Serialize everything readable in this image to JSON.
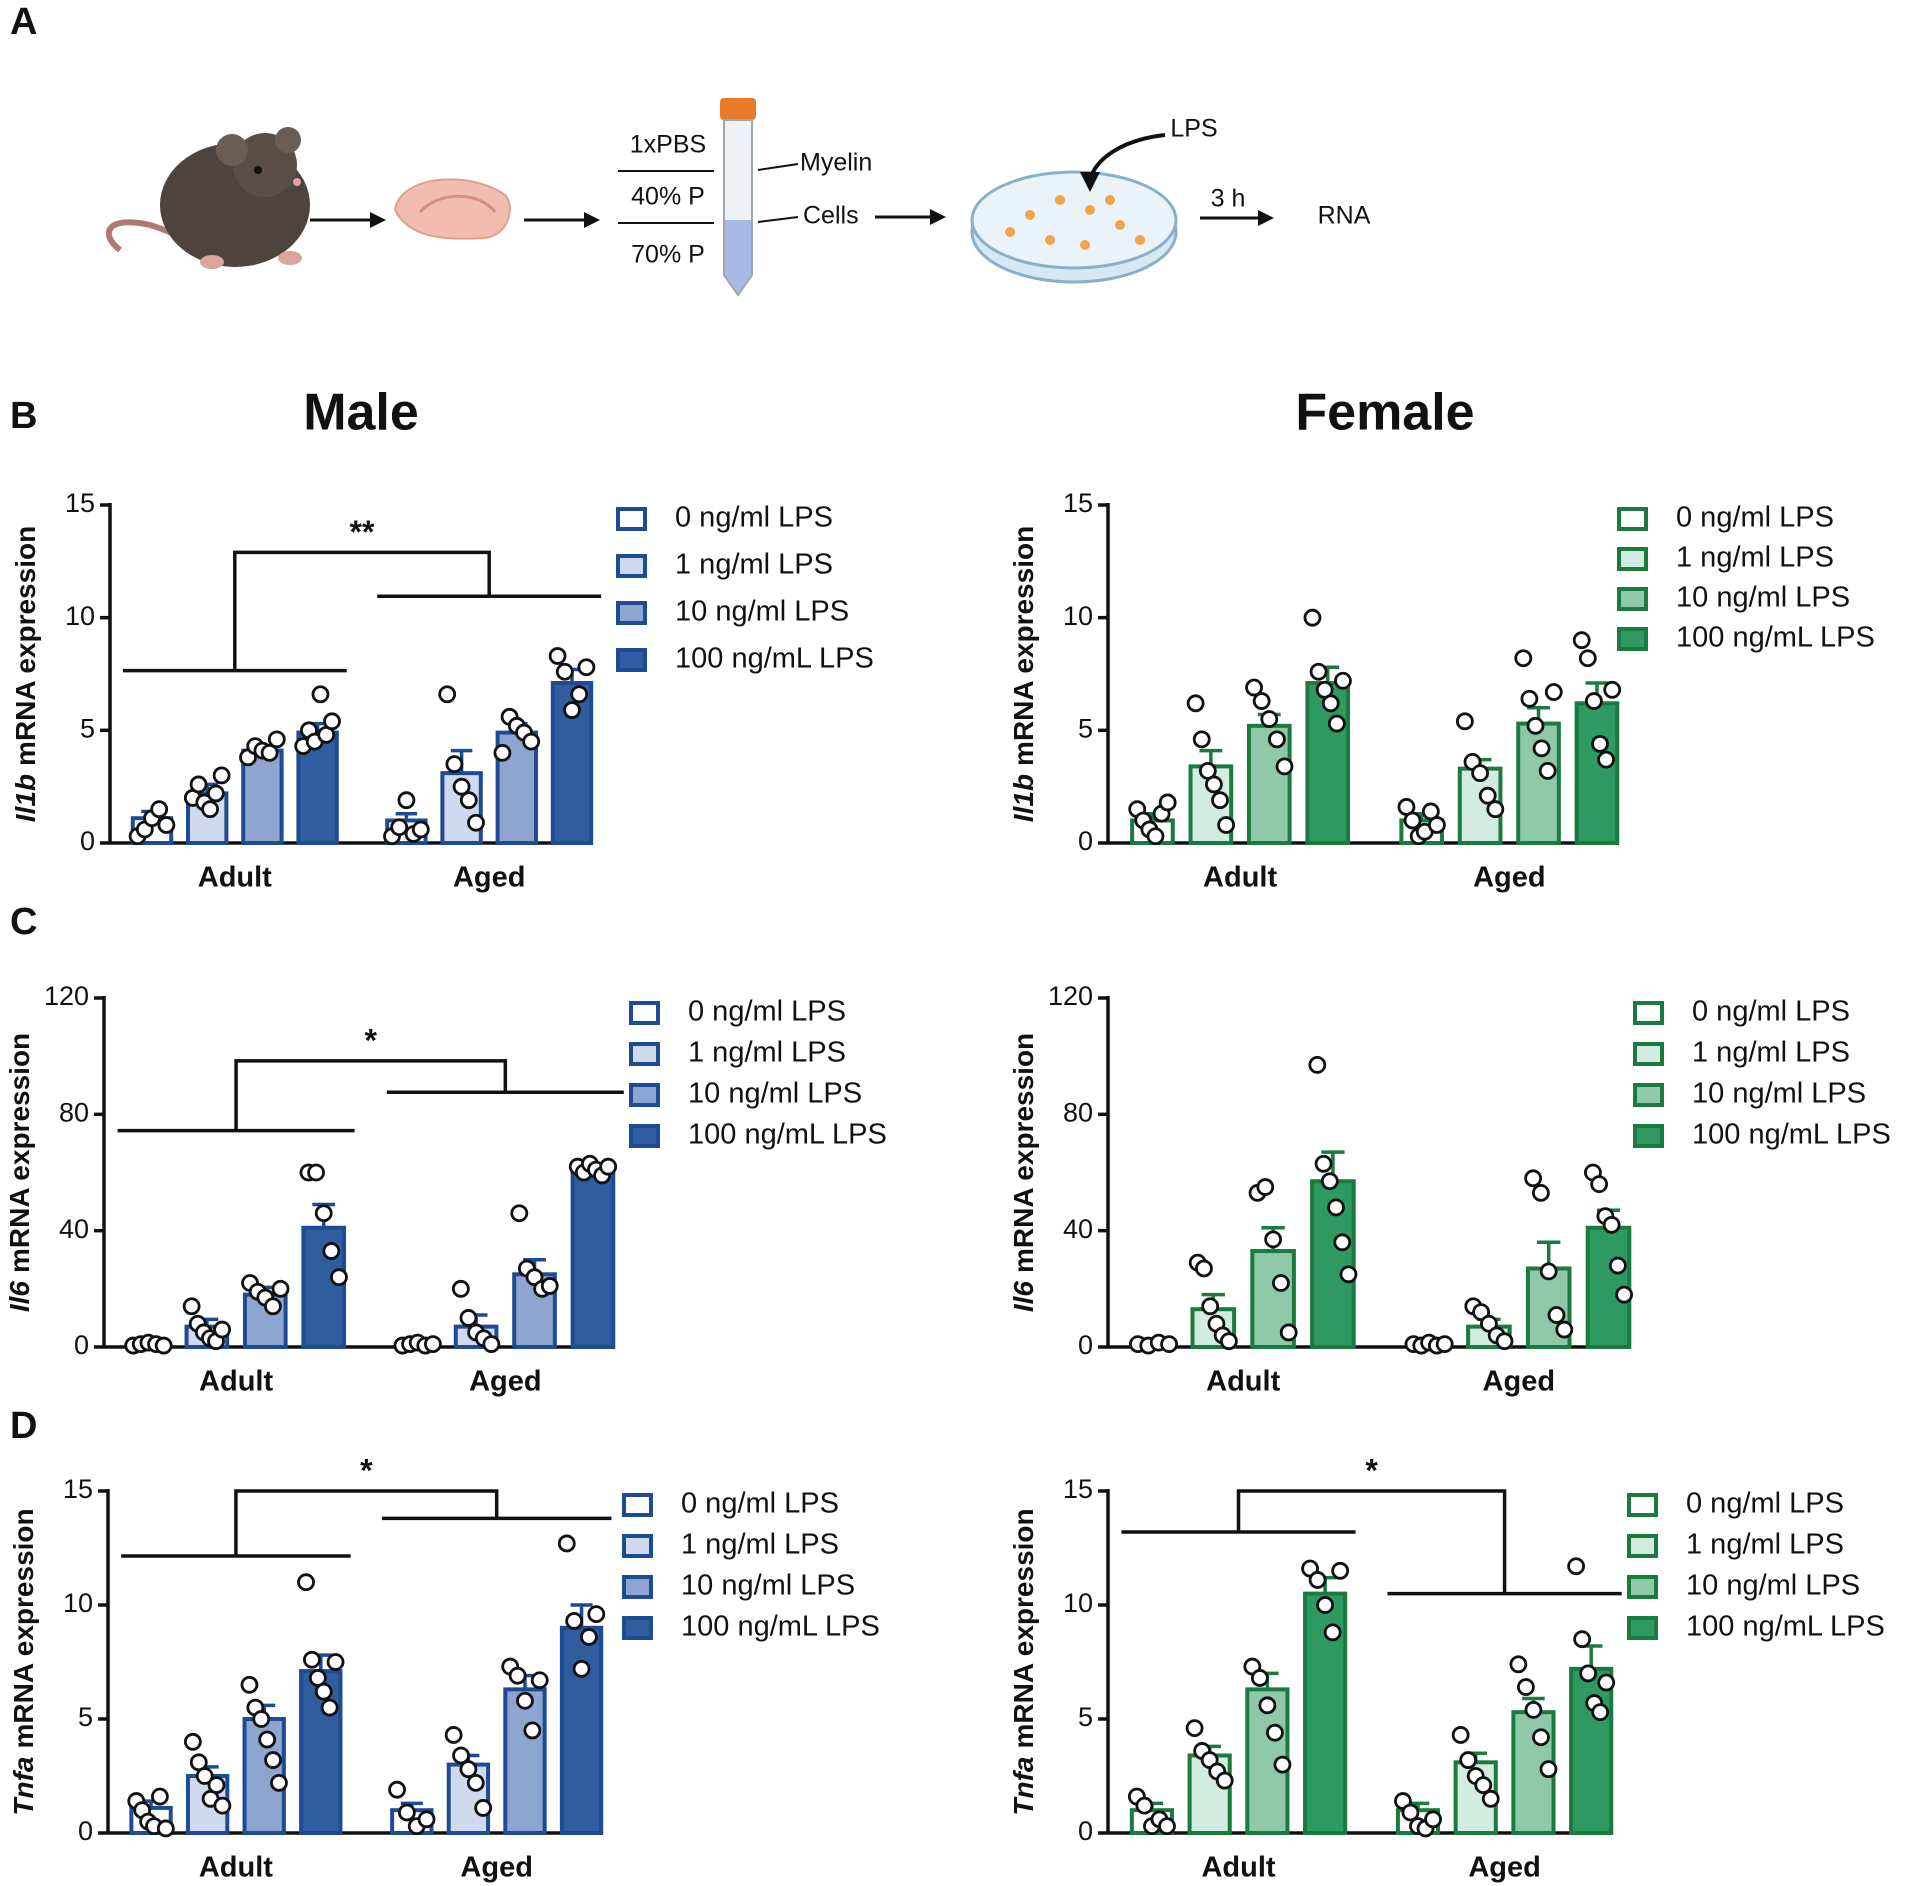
{
  "figure": {
    "panels": [
      "A",
      "B",
      "C",
      "D"
    ],
    "columns": [
      "Male",
      "Female"
    ],
    "diagram": {
      "labels": [
        "1xPBS",
        "40% P",
        "70% P",
        "Myelin",
        "Cells",
        "LPS",
        "3 h",
        "RNA"
      ]
    }
  },
  "chart_data": [
    {
      "type": "bar",
      "ylabel_gene": "Il1b",
      "ylabel": "mRNA expression",
      "categories": [
        "Adult",
        "Aged"
      ],
      "ylim": [
        0,
        15
      ],
      "yticks": [
        0,
        5,
        10,
        15
      ],
      "significance": "**",
      "edgecolor": "#1f4a94",
      "series": [
        {
          "name": "0 ng/ml LPS",
          "color": "#ffffff",
          "values": [
            1.1,
            1.0
          ],
          "errors": [
            0.3,
            0.3
          ],
          "points": [
            [
              0.3,
              0.6,
              1.1,
              1.5,
              0.8
            ],
            [
              0.3,
              0.7,
              1.9,
              0.4,
              0.6
            ]
          ]
        },
        {
          "name": "1 ng/ml LPS",
          "color": "#cfdaee",
          "values": [
            2.2,
            3.1
          ],
          "errors": [
            0.4,
            1.0
          ],
          "points": [
            [
              2.0,
              2.6,
              1.8,
              1.5,
              2.2,
              3.0
            ],
            [
              6.6,
              3.5,
              2.5,
              1.9,
              0.9
            ]
          ]
        },
        {
          "name": "10 ng/ml LPS",
          "color": "#8da5cf",
          "values": [
            4.1,
            4.9
          ],
          "errors": [
            0.2,
            0.4
          ],
          "points": [
            [
              3.8,
              4.3,
              4.1,
              4.0,
              4.6
            ],
            [
              4.0,
              5.6,
              5.2,
              4.9,
              4.5
            ]
          ]
        },
        {
          "name": "100 ng/mL LPS",
          "color": "#2f5d9e",
          "values": [
            4.9,
            7.1
          ],
          "errors": [
            0.4,
            0.6
          ],
          "points": [
            [
              4.3,
              5.0,
              4.5,
              6.6,
              4.8,
              5.4
            ],
            [
              8.3,
              7.6,
              5.9,
              6.6,
              7.8
            ]
          ]
        }
      ]
    },
    {
      "type": "bar",
      "ylabel_gene": "Il1b",
      "ylabel": "mRNA expression",
      "categories": [
        "Adult",
        "Aged"
      ],
      "ylim": [
        0,
        15
      ],
      "yticks": [
        0,
        5,
        10,
        15
      ],
      "edgecolor": "#1b7a40",
      "series": [
        {
          "name": "0 ng/ml LPS",
          "color": "#ffffff",
          "values": [
            1.0,
            1.0
          ],
          "errors": [
            0.3,
            0.3
          ],
          "points": [
            [
              1.5,
              1.0,
              0.6,
              0.3,
              1.3,
              1.8
            ],
            [
              1.6,
              1.0,
              0.3,
              0.5,
              1.4,
              0.8
            ]
          ]
        },
        {
          "name": "1 ng/ml LPS",
          "color": "#d3ece0",
          "values": [
            3.4,
            3.3
          ],
          "errors": [
            0.7,
            0.4
          ],
          "points": [
            [
              6.2,
              4.6,
              3.2,
              2.6,
              1.9,
              0.8
            ],
            [
              5.4,
              3.6,
              3.1,
              2.1,
              1.5
            ]
          ]
        },
        {
          "name": "10 ng/ml LPS",
          "color": "#8ec8a6",
          "values": [
            5.2,
            5.3
          ],
          "errors": [
            0.5,
            0.7
          ],
          "points": [
            [
              6.9,
              6.3,
              5.5,
              4.6,
              3.4
            ],
            [
              8.2,
              6.4,
              5.2,
              4.2,
              3.2,
              6.7
            ]
          ]
        },
        {
          "name": "100 ng/mL LPS",
          "color": "#2e9960",
          "values": [
            7.1,
            6.2
          ],
          "errors": [
            0.7,
            0.9
          ],
          "points": [
            [
              10.0,
              7.6,
              6.8,
              6.2,
              5.3,
              7.2
            ],
            [
              9.0,
              8.2,
              6.3,
              4.4,
              3.7,
              6.8
            ]
          ]
        }
      ]
    },
    {
      "type": "bar",
      "ylabel_gene": "Il6",
      "ylabel": "mRNA expression",
      "categories": [
        "Adult",
        "Aged"
      ],
      "ylim": [
        0,
        120
      ],
      "yticks": [
        0,
        40,
        80,
        120
      ],
      "significance": "*",
      "edgecolor": "#1f4a94",
      "series": [
        {
          "name": "0 ng/ml LPS",
          "color": "#ffffff",
          "values": [
            1,
            1
          ],
          "errors": [
            0.5,
            0.5
          ],
          "points": [
            [
              0.5,
              1,
              1.5,
              1,
              0.5
            ],
            [
              0.5,
              1,
              1.5,
              0.5,
              1
            ]
          ]
        },
        {
          "name": "1 ng/ml LPS",
          "color": "#cfdaee",
          "values": [
            7,
            7
          ],
          "errors": [
            2.5,
            4
          ],
          "points": [
            [
              14,
              8,
              5,
              3,
              2,
              6
            ],
            [
              20,
              10,
              5,
              3,
              1
            ]
          ]
        },
        {
          "name": "10 ng/ml LPS",
          "color": "#8da5cf",
          "values": [
            18,
            25
          ],
          "errors": [
            2.5,
            5
          ],
          "points": [
            [
              22,
              19,
              17,
              14,
              20
            ],
            [
              46,
              27,
              24,
              20,
              21
            ]
          ]
        },
        {
          "name": "100 ng/mL LPS",
          "color": "#2f5d9e",
          "values": [
            41,
            61
          ],
          "errors": [
            8,
            1.5
          ],
          "points": [
            [
              60,
              60,
              46,
              33,
              24
            ],
            [
              62,
              60,
              63,
              61,
              59,
              62
            ]
          ]
        }
      ]
    },
    {
      "type": "bar",
      "ylabel_gene": "Il6",
      "ylabel": "mRNA expression",
      "categories": [
        "Adult",
        "Aged"
      ],
      "ylim": [
        0,
        120
      ],
      "yticks": [
        0,
        40,
        80,
        120
      ],
      "edgecolor": "#1b7a40",
      "series": [
        {
          "name": "0 ng/ml LPS",
          "color": "#ffffff",
          "values": [
            1,
            1
          ],
          "errors": [
            0.5,
            0.5
          ],
          "points": [
            [
              1,
              0.5,
              1.5,
              1
            ],
            [
              1,
              0.5,
              1.5,
              0.5,
              1
            ]
          ]
        },
        {
          "name": "1 ng/ml LPS",
          "color": "#d3ece0",
          "values": [
            13,
            7
          ],
          "errors": [
            5,
            2.5
          ],
          "points": [
            [
              29,
              27,
              14,
              8,
              4,
              2
            ],
            [
              14,
              12,
              8,
              4,
              2
            ]
          ]
        },
        {
          "name": "10 ng/ml LPS",
          "color": "#8ec8a6",
          "values": [
            33,
            27
          ],
          "errors": [
            8,
            9
          ],
          "points": [
            [
              53,
              55,
              37,
              22,
              5
            ],
            [
              58,
              53,
              26,
              11,
              6
            ]
          ]
        },
        {
          "name": "100 ng/mL LPS",
          "color": "#2e9960",
          "values": [
            57,
            41
          ],
          "errors": [
            10,
            6
          ],
          "points": [
            [
              97,
              63,
              57,
              48,
              36,
              25
            ],
            [
              60,
              56,
              45,
              42,
              28,
              18
            ]
          ]
        }
      ]
    },
    {
      "type": "bar",
      "ylabel_gene": "Tnfa",
      "ylabel": "mRNA expression",
      "categories": [
        "Adult",
        "Aged"
      ],
      "ylim": [
        0,
        15
      ],
      "yticks": [
        0,
        5,
        10,
        15
      ],
      "significance": "*",
      "edgecolor": "#1f4a94",
      "series": [
        {
          "name": "0 ng/ml LPS",
          "color": "#ffffff",
          "values": [
            1.1,
            1.0
          ],
          "errors": [
            0.3,
            0.3
          ],
          "points": [
            [
              1.4,
              1.0,
              0.5,
              0.3,
              1.6,
              0.2
            ],
            [
              1.9,
              0.9,
              0.3,
              0.6
            ]
          ]
        },
        {
          "name": "1 ng/ml LPS",
          "color": "#cfdaee",
          "values": [
            2.5,
            3.0
          ],
          "errors": [
            0.4,
            0.4
          ],
          "points": [
            [
              4.0,
              3.1,
              2.5,
              1.5,
              2.1,
              1.2
            ],
            [
              4.3,
              3.4,
              2.8,
              2.2,
              1.1
            ]
          ]
        },
        {
          "name": "10 ng/ml LPS",
          "color": "#8da5cf",
          "values": [
            5.0,
            6.3
          ],
          "errors": [
            0.6,
            0.6
          ],
          "points": [
            [
              6.5,
              5.5,
              5.0,
              4.1,
              3.2,
              2.2
            ],
            [
              7.3,
              6.9,
              5.8,
              4.5,
              6.7
            ]
          ]
        },
        {
          "name": "100 ng/mL LPS",
          "color": "#2f5d9e",
          "values": [
            7.1,
            9.0
          ],
          "errors": [
            0.7,
            1.0
          ],
          "points": [
            [
              11.0,
              7.6,
              6.8,
              6.2,
              5.5,
              7.5
            ],
            [
              12.7,
              9.3,
              7.2,
              8.6,
              9.6
            ]
          ]
        }
      ]
    },
    {
      "type": "bar",
      "ylabel_gene": "Tnfa",
      "ylabel": "mRNA expression",
      "categories": [
        "Adult",
        "Aged"
      ],
      "ylim": [
        0,
        15
      ],
      "yticks": [
        0,
        5,
        10,
        15
      ],
      "significance": "*",
      "edgecolor": "#1b7a40",
      "series": [
        {
          "name": "0 ng/ml LPS",
          "color": "#ffffff",
          "values": [
            1.0,
            1.0
          ],
          "errors": [
            0.3,
            0.3
          ],
          "points": [
            [
              1.6,
              1.2,
              0.3,
              0.6,
              0.3
            ],
            [
              1.4,
              0.9,
              0.3,
              0.2,
              0.6
            ]
          ]
        },
        {
          "name": "1 ng/ml LPS",
          "color": "#d3ece0",
          "values": [
            3.4,
            3.1
          ],
          "errors": [
            0.4,
            0.4
          ],
          "points": [
            [
              4.6,
              3.6,
              3.2,
              2.7,
              2.3
            ],
            [
              4.3,
              3.2,
              2.5,
              2.1,
              1.5
            ]
          ]
        },
        {
          "name": "10 ng/ml LPS",
          "color": "#8ec8a6",
          "values": [
            6.3,
            5.3
          ],
          "errors": [
            0.7,
            0.6
          ],
          "points": [
            [
              7.3,
              6.8,
              5.6,
              4.4,
              3.0
            ],
            [
              7.4,
              6.4,
              5.4,
              4.2,
              2.8
            ]
          ]
        },
        {
          "name": "100 ng/mL LPS",
          "color": "#2e9960",
          "values": [
            10.5,
            7.2
          ],
          "errors": [
            0.7,
            1.0
          ],
          "points": [
            [
              11.6,
              11.1,
              10.0,
              8.8,
              11.5
            ],
            [
              11.7,
              8.5,
              7.0,
              5.7,
              5.3,
              6.6
            ]
          ]
        }
      ]
    }
  ]
}
